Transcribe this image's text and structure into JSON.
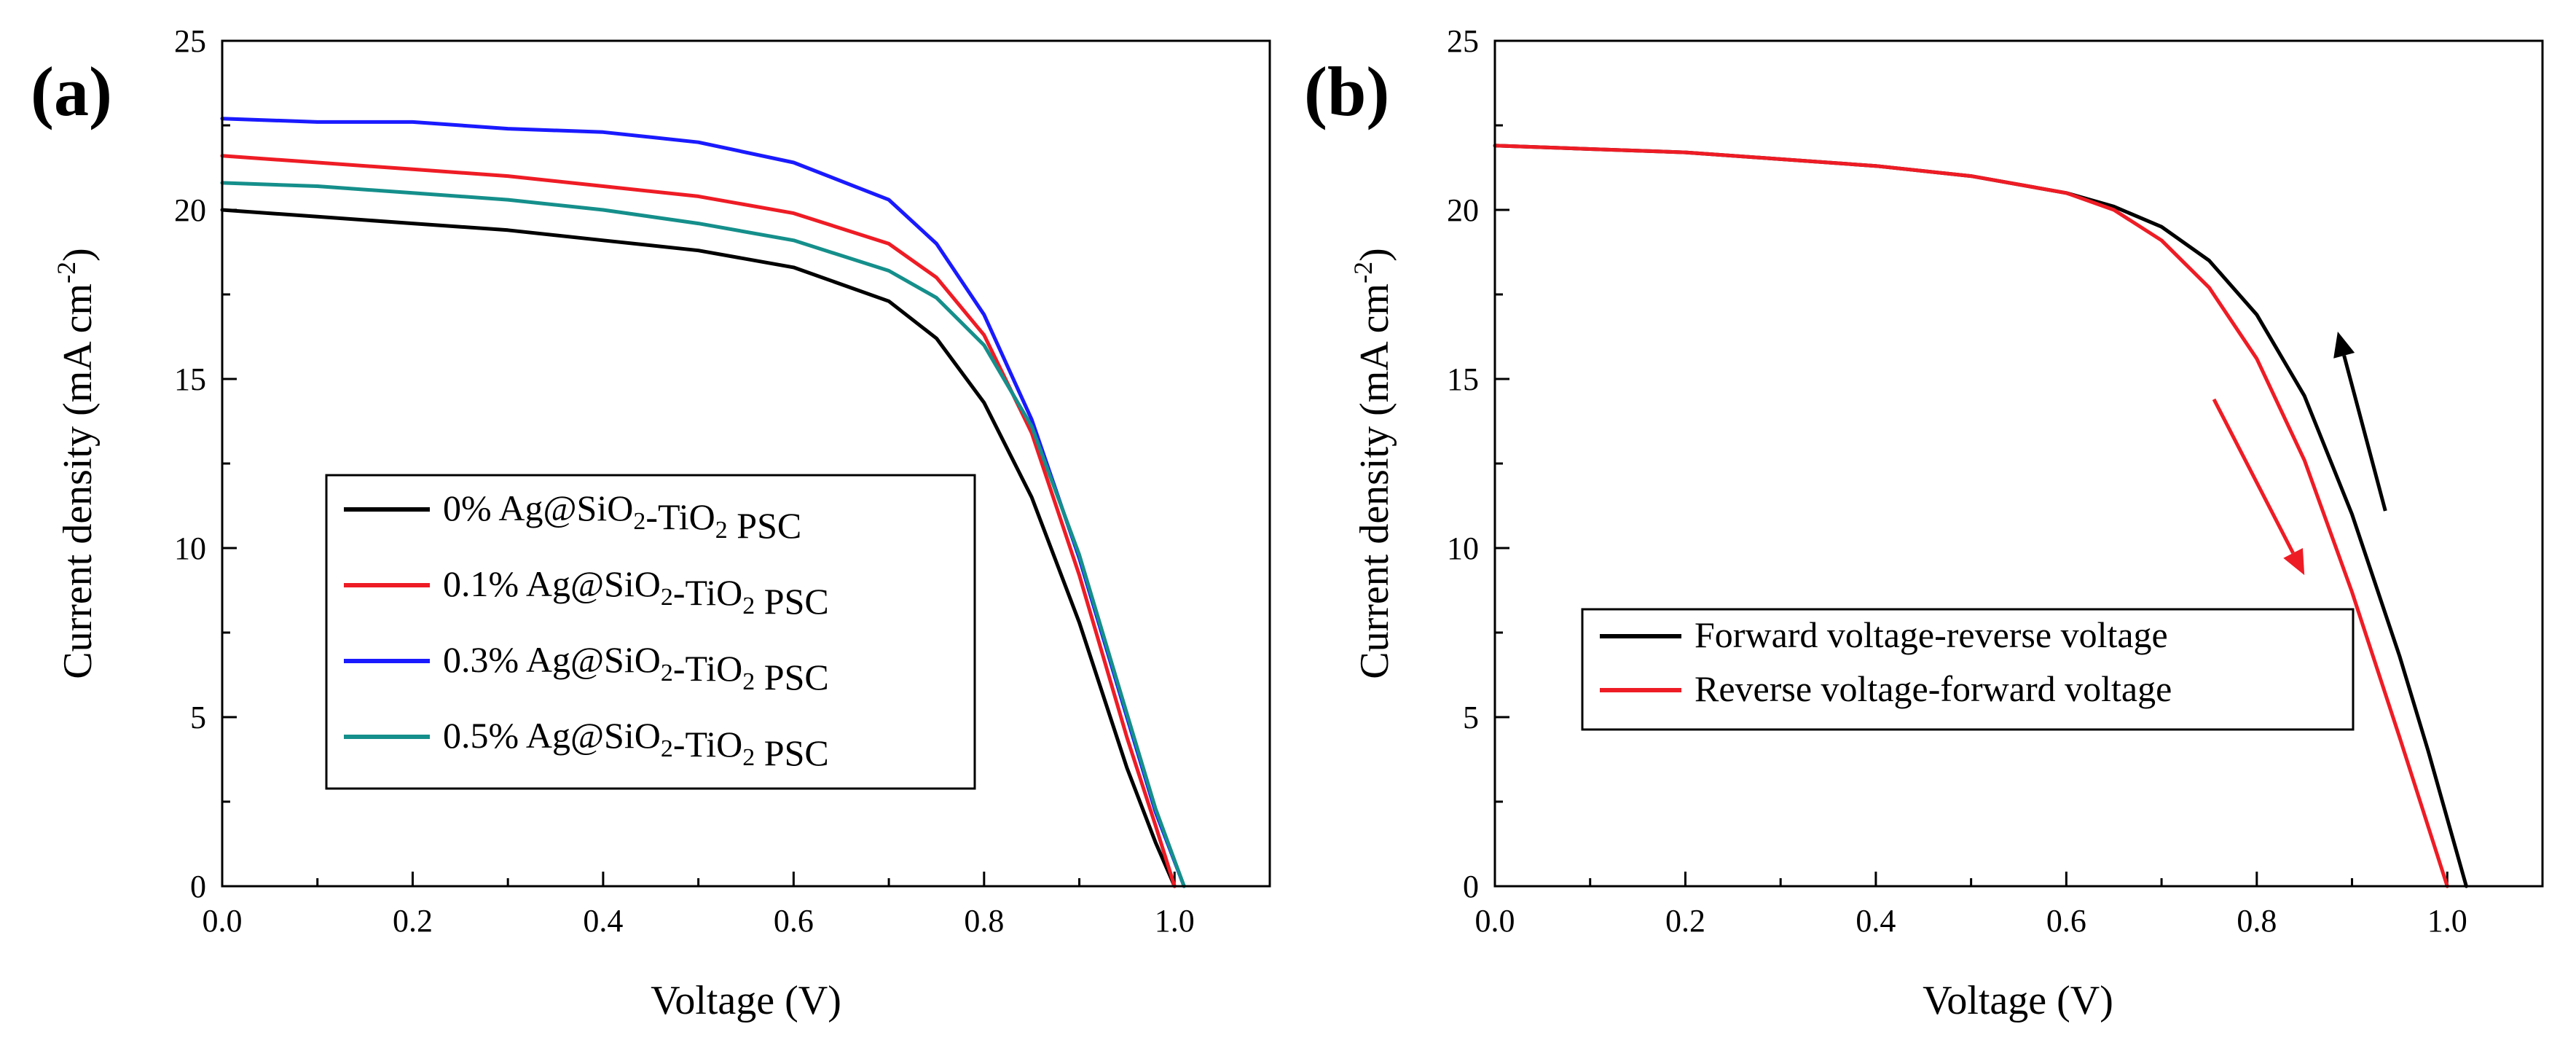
{
  "chart_data": [
    {
      "type": "line",
      "panel_label": "(a)",
      "xlabel": "Voltage (V)",
      "ylabel": "Current density (mA cm⁻²)",
      "ylabel_main": "Current density (mA cm",
      "ylabel_sup": "-2",
      "ylabel_close": ")",
      "xlim": [
        0.0,
        1.1
      ],
      "ylim": [
        0,
        25
      ],
      "xticks": [
        0.0,
        0.2,
        0.4,
        0.6,
        0.8,
        1.0
      ],
      "xtick_labels": [
        "0.0",
        "0.2",
        "0.4",
        "0.6",
        "0.8",
        "1.0"
      ],
      "yticks": [
        0,
        5,
        10,
        15,
        20,
        25
      ],
      "ytick_labels": [
        "0",
        "5",
        "10",
        "15",
        "20",
        "25"
      ],
      "legend_position": "lower-center",
      "series": [
        {
          "name": "0% Ag@SiO2-TiO2 PSC",
          "legend": {
            "pre": "0% Ag@SiO",
            "sub1": "2",
            "mid": "-TiO",
            "sub2": "2",
            "post": " PSC"
          },
          "color": "#000000",
          "x": [
            0.0,
            0.1,
            0.2,
            0.3,
            0.4,
            0.5,
            0.6,
            0.7,
            0.75,
            0.8,
            0.85,
            0.9,
            0.95,
            0.98,
            1.0
          ],
          "y": [
            20.0,
            19.8,
            19.6,
            19.4,
            19.1,
            18.8,
            18.3,
            17.3,
            16.2,
            14.3,
            11.5,
            7.8,
            3.5,
            1.3,
            0
          ]
        },
        {
          "name": "0.1% Ag@SiO2-TiO2 PSC",
          "legend": {
            "pre": "0.1% Ag@SiO",
            "sub1": "2",
            "mid": "-TiO",
            "sub2": "2",
            "post": " PSC"
          },
          "color": "#ee1c25",
          "x": [
            0.0,
            0.1,
            0.2,
            0.3,
            0.4,
            0.5,
            0.6,
            0.7,
            0.75,
            0.8,
            0.85,
            0.9,
            0.95,
            0.98,
            1.0
          ],
          "y": [
            21.6,
            21.4,
            21.2,
            21.0,
            20.7,
            20.4,
            19.9,
            19.0,
            18.0,
            16.3,
            13.4,
            9.2,
            4.4,
            1.8,
            0
          ]
        },
        {
          "name": "0.3% Ag@SiO2-TiO2 PSC",
          "legend": {
            "pre": "0.3% Ag@SiO",
            "sub1": "2",
            "mid": "-TiO",
            "sub2": "2",
            "post": " PSC"
          },
          "color": "#1a1aff",
          "x": [
            0.0,
            0.1,
            0.2,
            0.3,
            0.4,
            0.5,
            0.6,
            0.7,
            0.75,
            0.8,
            0.85,
            0.9,
            0.95,
            0.98,
            1.01
          ],
          "y": [
            22.7,
            22.6,
            22.6,
            22.4,
            22.3,
            22.0,
            21.4,
            20.3,
            19.0,
            16.9,
            13.8,
            9.7,
            5.0,
            2.2,
            0
          ]
        },
        {
          "name": "0.5% Ag@SiO2-TiO2 PSC",
          "legend": {
            "pre": "0.5% Ag@SiO",
            "sub1": "2",
            "mid": "-TiO",
            "sub2": "2",
            "post": " PSC"
          },
          "color": "#158f8b",
          "x": [
            0.0,
            0.1,
            0.2,
            0.3,
            0.4,
            0.5,
            0.6,
            0.7,
            0.75,
            0.8,
            0.85,
            0.9,
            0.95,
            0.98,
            1.01
          ],
          "y": [
            20.8,
            20.7,
            20.5,
            20.3,
            20.0,
            19.6,
            19.1,
            18.2,
            17.4,
            16.0,
            13.6,
            9.8,
            5.1,
            2.3,
            0
          ]
        }
      ]
    },
    {
      "type": "line",
      "panel_label": "(b)",
      "xlabel": "Voltage (V)",
      "ylabel": "Current density (mA cm⁻²)",
      "ylabel_main": "Current density (mA cm",
      "ylabel_sup": "-2",
      "ylabel_close": ")",
      "xlim": [
        0.0,
        1.1
      ],
      "ylim": [
        0,
        25
      ],
      "xticks": [
        0.0,
        0.2,
        0.4,
        0.6,
        0.8,
        1.0
      ],
      "xtick_labels": [
        "0.0",
        "0.2",
        "0.4",
        "0.6",
        "0.8",
        "1.0"
      ],
      "yticks": [
        0,
        5,
        10,
        15,
        20,
        25
      ],
      "ytick_labels": [
        "0",
        "5",
        "10",
        "15",
        "20",
        "25"
      ],
      "legend_position": "lower-center",
      "series": [
        {
          "name": "Forward voltage-reverse voltage",
          "legend": {
            "pre": "Forward voltage-reverse voltage"
          },
          "color": "#000000",
          "x": [
            0.0,
            0.1,
            0.2,
            0.3,
            0.4,
            0.5,
            0.6,
            0.65,
            0.7,
            0.75,
            0.8,
            0.85,
            0.9,
            0.95,
            0.98,
            1.02
          ],
          "y": [
            21.9,
            21.8,
            21.7,
            21.5,
            21.3,
            21.0,
            20.5,
            20.1,
            19.5,
            18.5,
            16.9,
            14.5,
            11.0,
            6.8,
            4.0,
            0
          ]
        },
        {
          "name": "Reverse voltage-forward voltage",
          "legend": {
            "pre": "Reverse voltage-forward voltage"
          },
          "color": "#ee1c25",
          "x": [
            0.0,
            0.1,
            0.2,
            0.3,
            0.4,
            0.5,
            0.6,
            0.65,
            0.7,
            0.75,
            0.8,
            0.85,
            0.9,
            0.95,
            1.0
          ],
          "y": [
            21.9,
            21.8,
            21.7,
            21.5,
            21.3,
            21.0,
            20.5,
            20.0,
            19.1,
            17.7,
            15.6,
            12.6,
            8.7,
            4.4,
            0
          ]
        }
      ],
      "arrows": [
        {
          "name": "forward-sweep-arrow",
          "color": "#000000",
          "from": [
            0.935,
            11.1
          ],
          "to": [
            0.885,
            16.4
          ]
        },
        {
          "name": "reverse-sweep-arrow",
          "color": "#ee1c25",
          "from": [
            0.755,
            14.4
          ],
          "to": [
            0.85,
            9.2
          ]
        }
      ]
    }
  ]
}
